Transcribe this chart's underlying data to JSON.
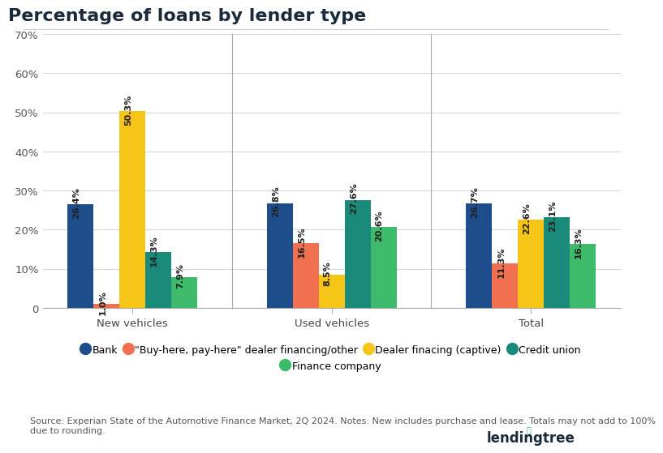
{
  "title": "Percentage of loans by lender type",
  "categories": [
    "New vehicles",
    "Used vehicles",
    "Total"
  ],
  "series": [
    {
      "name": "Bank",
      "color": "#1e4d8c",
      "values": [
        26.4,
        26.8,
        26.7
      ]
    },
    {
      "name": "\"Buy-here, pay-here\" dealer financing/other",
      "color": "#f07050",
      "values": [
        1.0,
        16.5,
        11.3
      ]
    },
    {
      "name": "Dealer finacing (captive)",
      "color": "#f5c518",
      "values": [
        50.3,
        8.5,
        22.6
      ]
    },
    {
      "name": "Credit union",
      "color": "#1a8a7a",
      "values": [
        14.3,
        27.6,
        23.1
      ]
    },
    {
      "name": "Finance company",
      "color": "#3dba6a",
      "values": [
        7.9,
        20.6,
        16.3
      ]
    }
  ],
  "ylim": [
    0,
    70
  ],
  "yticks": [
    0,
    10,
    20,
    30,
    40,
    50,
    60,
    70
  ],
  "ytick_labels": [
    "0",
    "10%",
    "20%",
    "30%",
    "40%",
    "50%",
    "60%",
    "70%"
  ],
  "footnote": "Source: Experian State of the Automotive Finance Market, 2Q 2024. Notes: New includes purchase and lease. Totals may not add to 100%\ndue to rounding.",
  "background_color": "#ffffff",
  "grid_color": "#d8d8d8",
  "title_color": "#1a2a3a",
  "title_fontsize": 16,
  "tick_fontsize": 9.5,
  "bar_label_fontsize": 8,
  "bar_width": 0.13,
  "legend_fontsize": 9
}
